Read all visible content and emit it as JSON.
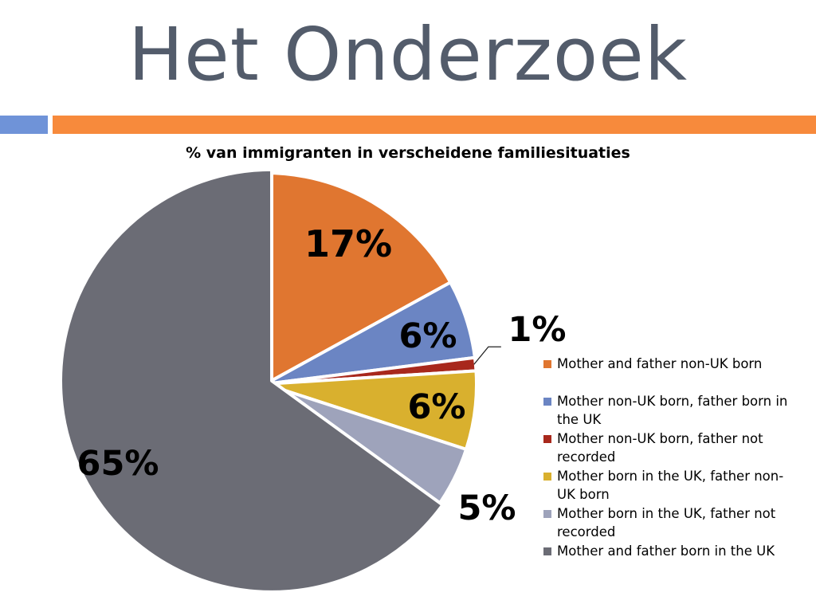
{
  "slide": {
    "title": "Het Onderzoek",
    "accent_colors": {
      "small_bar": "#6f93d8",
      "long_bar": "#f78a3c",
      "title": "#535c6b"
    }
  },
  "chart_data": {
    "type": "pie",
    "title": "% van immigranten in verscheidene familiesituaties",
    "categories": [
      "Mother and father non-UK born",
      "Mother non-UK born, father born in the UK",
      "Mother non-UK born, father not recorded",
      "Mother born in the UK, father non-UK born",
      "Mother born in the UK, father not recorded",
      "Mother and father born in the UK"
    ],
    "values": [
      17,
      6,
      1,
      6,
      5,
      65
    ],
    "data_labels": [
      "17%",
      "6%",
      "1%",
      "6%",
      "5%",
      "65%"
    ],
    "colors": [
      "#e07630",
      "#6b85c3",
      "#a8281c",
      "#d9b02e",
      "#9ea3bb",
      "#6b6c75"
    ],
    "exploded_slice": "Mother and father born in the UK",
    "legend_position": "right"
  }
}
